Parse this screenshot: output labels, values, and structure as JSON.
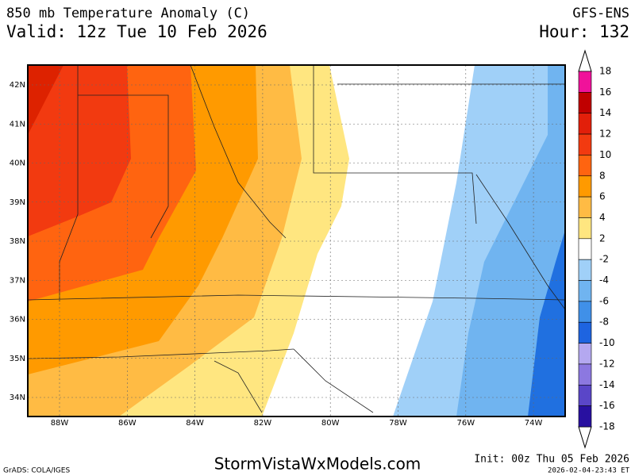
{
  "header": {
    "title": "850 mb Temperature Anomaly (C)",
    "valid": "Valid: 12z Tue 10 Feb 2026",
    "model": "GFS-ENS",
    "hour": "Hour: 132"
  },
  "map": {
    "lat_labels": [
      "42N",
      "41N",
      "40N",
      "39N",
      "38N",
      "37N",
      "36N",
      "35N",
      "34N"
    ],
    "lon_labels": [
      "88W",
      "86W",
      "84W",
      "82W",
      "80W",
      "78W",
      "76W",
      "74W"
    ]
  },
  "colorbar": {
    "levels": [
      18,
      16,
      14,
      12,
      10,
      8,
      6,
      4,
      2,
      -2,
      -4,
      -6,
      -8,
      -10,
      -12,
      -14,
      -16,
      -18
    ],
    "colors": [
      "#f0129a",
      "#c00000",
      "#e21f0a",
      "#f23a10",
      "#ff6410",
      "#ff9a00",
      "#ffbb44",
      "#ffe680",
      "#ffffff",
      "#a0d0f8",
      "#70b4f0",
      "#4090e8",
      "#1e64e0",
      "#b4a8f0",
      "#8c78e0",
      "#5a46c8",
      "#2810a0"
    ]
  },
  "footer": {
    "grads": "GrADS: COLA/IGES",
    "site": "StormVistaWxModels.com",
    "init": "Init: 00z Thu 05 Feb 2026",
    "timestamp": "2026-02-04-23:43 ET"
  }
}
